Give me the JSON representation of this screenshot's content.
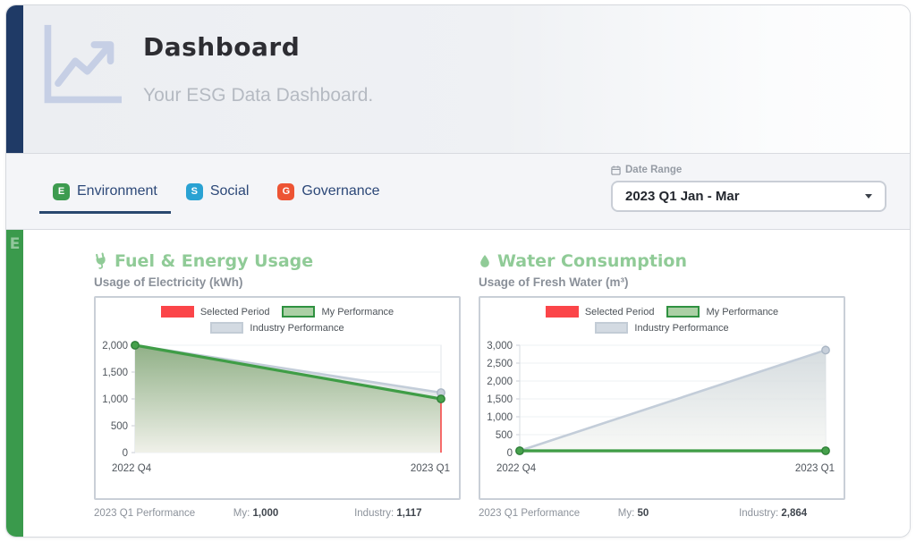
{
  "theme": {
    "navy_accent": "#1f3a66",
    "active_tab_underline": "#29486f",
    "environment_green": "#3a9a4c",
    "card_title_green": "#90cb97",
    "selected_period_red": "#f64949",
    "my_performance_green": "#3f9d46",
    "industry_gray": "#c3cdd9"
  },
  "header": {
    "title": "Dashboard",
    "subtitle": "Your ESG Data Dashboard.",
    "icon": "line-chart-icon"
  },
  "tabs": [
    {
      "label": "Environment",
      "badge": "E",
      "badge_color": "#3d9b4f",
      "active": true
    },
    {
      "label": "Social",
      "badge": "S",
      "badge_color": "#2aa2d3",
      "active": false
    },
    {
      "label": "Governance",
      "badge": "G",
      "badge_color": "#ed5434",
      "active": false
    }
  ],
  "date_range": {
    "label": "Date Range",
    "value": "2023 Q1 Jan - Mar"
  },
  "sidebar": {
    "letter": "E"
  },
  "cards": [
    {
      "title": "Fuel & Energy Usage",
      "icon": "plug-icon",
      "subtitle": "Usage of Electricity (kWh)",
      "footer": {
        "period": "2023 Q1 Performance",
        "my_label": "My:",
        "my_value": "1,000",
        "industry_label": "Industry:",
        "industry_value": "1,117"
      }
    },
    {
      "title": "Water Consumption",
      "icon": "water-drop-icon",
      "subtitle": "Usage of Fresh Water (m³)",
      "footer": {
        "period": "2023 Q1 Performance",
        "my_label": "My:",
        "my_value": "50",
        "industry_label": "Industry:",
        "industry_value": "2,864"
      }
    }
  ],
  "chart_data": [
    {
      "type": "line",
      "title": "Usage of Electricity (kWh)",
      "categories": [
        "2022 Q4",
        "2023 Q1"
      ],
      "series": [
        {
          "name": "My Performance",
          "values": [
            2000,
            1000
          ],
          "line_color": "#3f9d46",
          "line_width": 3.2,
          "fill": true,
          "fill_gradient": [
            "#8aac7f",
            "#eff0e8"
          ],
          "fill_opacity": 0.92,
          "dot_fill": "#46a14c",
          "dot_stroke": "#2f8038"
        },
        {
          "name": "Industry Performance",
          "values": [
            2000,
            1117
          ],
          "line_color": "#c3cdd9",
          "line_width": 2.6,
          "fill": true,
          "fill_gradient": [
            "#ccd4d8",
            "#f7f8f5"
          ],
          "fill_opacity": 0.8,
          "dot_fill": "#c7cfda",
          "dot_stroke": "#aab6c4"
        }
      ],
      "selected_period": {
        "name": "Selected Period",
        "category": "2023 Q1",
        "value": 1000,
        "color": "#f64949"
      },
      "ylim": [
        0,
        2000
      ],
      "ytick_step": 500,
      "grid": true,
      "legend_position": "top",
      "legend": [
        {
          "label": "Selected Period",
          "fill": "#fb4549",
          "border": "#fb4549"
        },
        {
          "label": "My Performance",
          "fill": "#abd0a5",
          "border": "#2f9140"
        },
        {
          "label": "Industry Performance",
          "fill": "#d3dae2",
          "border": "#c3ccd6"
        }
      ]
    },
    {
      "type": "line",
      "title": "Usage of Fresh Water (m³)",
      "categories": [
        "2022 Q4",
        "2023 Q1"
      ],
      "series": [
        {
          "name": "My Performance",
          "values": [
            50,
            50
          ],
          "line_color": "#3f9d46",
          "line_width": 3.2,
          "fill": true,
          "fill_gradient": [
            "#8aac7f",
            "#eff0e8"
          ],
          "fill_opacity": 0.92,
          "dot_fill": "#46a14c",
          "dot_stroke": "#2f8038"
        },
        {
          "name": "Industry Performance",
          "values": [
            50,
            2864
          ],
          "line_color": "#c3cdd9",
          "line_width": 2.6,
          "fill": true,
          "fill_gradient": [
            "#ccd4d8",
            "#f7f8f5"
          ],
          "fill_opacity": 0.8,
          "dot_fill": "#c7cfda",
          "dot_stroke": "#aab6c4"
        }
      ],
      "selected_period": {
        "name": "Selected Period",
        "category": "2023 Q1",
        "value": 50,
        "color": "#f64949"
      },
      "ylim": [
        0,
        3000
      ],
      "ytick_step": 500,
      "grid": true,
      "legend_position": "top",
      "legend": [
        {
          "label": "Selected Period",
          "fill": "#fb4549",
          "border": "#fb4549"
        },
        {
          "label": "My Performance",
          "fill": "#abd0a5",
          "border": "#2f9140"
        },
        {
          "label": "Industry Performance",
          "fill": "#d3dae2",
          "border": "#c3ccd6"
        }
      ]
    }
  ]
}
